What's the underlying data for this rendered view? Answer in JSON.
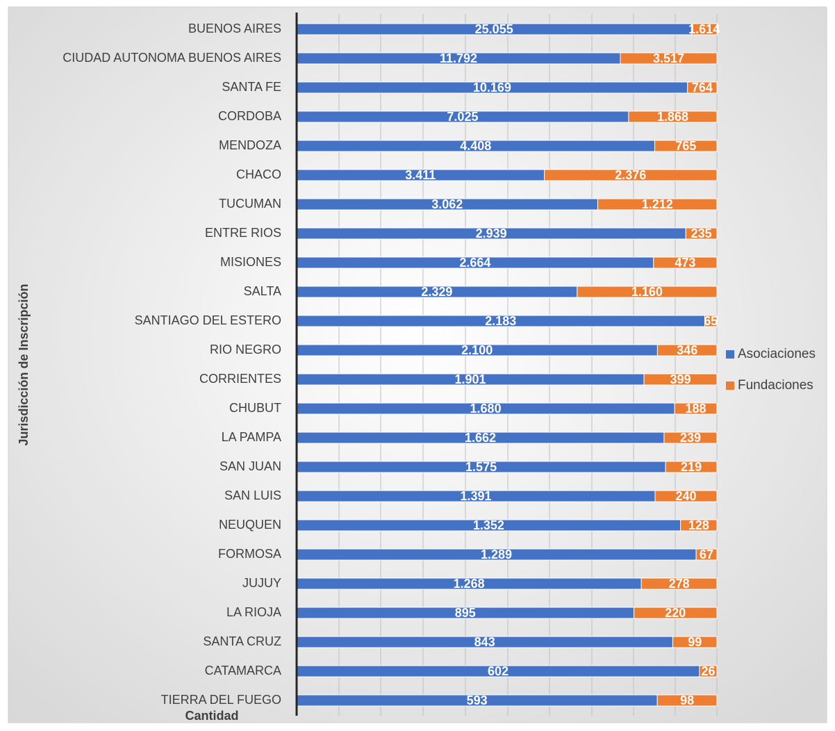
{
  "chart_data": {
    "type": "bar",
    "orientation": "horizontal",
    "stacking": "percent",
    "y_label": "Jurisdicción de Inscripción",
    "x_label": "Cantidad",
    "legend": "right",
    "categories": [
      "BUENOS AIRES",
      "CIUDAD AUTONOMA BUENOS AIRES",
      "SANTA FE",
      "CORDOBA",
      "MENDOZA",
      "CHACO",
      "TUCUMAN",
      "ENTRE RIOS",
      "MISIONES",
      "SALTA",
      "SANTIAGO DEL ESTERO",
      "RIO NEGRO",
      "CORRIENTES",
      "CHUBUT",
      "LA PAMPA",
      "SAN JUAN",
      "SAN LUIS",
      "NEUQUEN",
      "FORMOSA",
      "JUJUY",
      "LA RIOJA",
      "SANTA CRUZ",
      "CATAMARCA",
      "TIERRA DEL FUEGO"
    ],
    "series": [
      {
        "name": "Asociaciones",
        "color": "#4472c4",
        "values": [
          25055,
          11792,
          10169,
          7025,
          4408,
          3411,
          3062,
          2939,
          2664,
          2329,
          2183,
          2100,
          1901,
          1680,
          1662,
          1575,
          1391,
          1352,
          1289,
          1268,
          895,
          843,
          602,
          593
        ],
        "value_labels": [
          "25.055",
          "11.792",
          "10.169",
          "7.025",
          "4.408",
          "3.411",
          "3.062",
          "2.939",
          "2.664",
          "2.329",
          "2.183",
          "2.100",
          "1.901",
          "1.680",
          "1.662",
          "1.575",
          "1.391",
          "1.352",
          "1.289",
          "1.268",
          "895",
          "843",
          "602",
          "593"
        ]
      },
      {
        "name": "Fundaciones",
        "color": "#ed7d31",
        "values": [
          1614,
          3517,
          764,
          1868,
          765,
          2376,
          1212,
          235,
          473,
          1160,
          65,
          346,
          399,
          188,
          239,
          219,
          240,
          128,
          67,
          278,
          220,
          99,
          26,
          98
        ],
        "value_labels": [
          "1.614",
          "3.517",
          "764",
          "1.868",
          "765",
          "2.376",
          "1.212",
          "235",
          "473",
          "1.160",
          "65",
          "346",
          "399",
          "188",
          "239",
          "219",
          "240",
          "128",
          "67",
          "278",
          "220",
          "99",
          "26",
          "98"
        ]
      }
    ]
  }
}
